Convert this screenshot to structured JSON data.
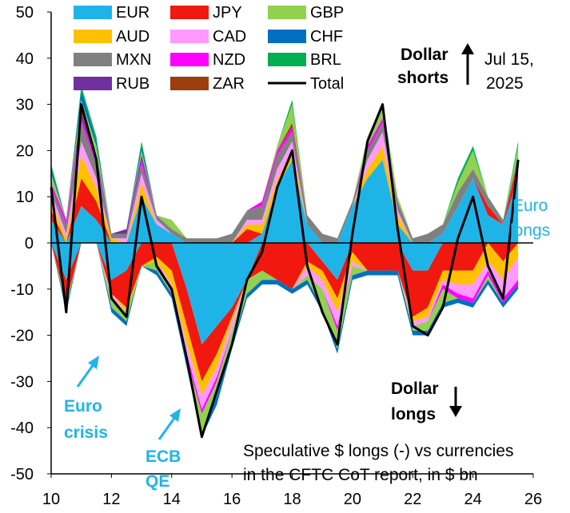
{
  "chart_data": {
    "type": "area",
    "subtype": "stacked",
    "xlim": [
      10,
      26
    ],
    "ylim": [
      -50,
      50
    ],
    "x_ticks": [
      10,
      12,
      14,
      16,
      18,
      20,
      22,
      24,
      26
    ],
    "x_tick_labels": [
      "10",
      "12",
      "14",
      "16",
      "18",
      "20",
      "22",
      "24",
      "26"
    ],
    "y_ticks": [
      -50,
      -40,
      -30,
      -20,
      -10,
      0,
      10,
      20,
      30,
      40,
      50
    ],
    "y_tick_labels": [
      "-50",
      "-40",
      "-30",
      "-20",
      "-10",
      "0",
      "10",
      "20",
      "30",
      "40",
      "50"
    ],
    "x": [
      10.0,
      10.5,
      11.0,
      11.5,
      12.0,
      12.5,
      13.0,
      13.5,
      14.0,
      14.5,
      15.0,
      15.5,
      16.0,
      16.5,
      17.0,
      17.5,
      18.0,
      18.5,
      19.0,
      19.5,
      20.0,
      20.5,
      21.0,
      21.5,
      22.0,
      22.5,
      23.0,
      23.5,
      24.0,
      24.5,
      25.0,
      25.5
    ],
    "series": [
      {
        "name": "EUR",
        "color": "#1FB4E8",
        "values": [
          5,
          -8,
          8,
          5,
          -8,
          -6,
          10,
          4,
          2,
          -10,
          -22,
          -18,
          -14,
          -8,
          2,
          12,
          18,
          4,
          -4,
          -8,
          8,
          14,
          18,
          4,
          -6,
          -6,
          2,
          8,
          14,
          6,
          4,
          14
        ]
      },
      {
        "name": "JPY",
        "color": "#F0180F",
        "values": [
          2,
          -5,
          6,
          4,
          -3,
          -8,
          -5,
          -3,
          -6,
          -8,
          -8,
          -6,
          -2,
          3,
          -6,
          -8,
          -10,
          -4,
          -2,
          -4,
          -2,
          -6,
          -6,
          -6,
          -10,
          -8,
          -6,
          -6,
          -6,
          2,
          -4,
          4
        ]
      },
      {
        "name": "AUD",
        "color": "#FFC000",
        "values": [
          2,
          1,
          5,
          3,
          1,
          -1,
          3,
          -1,
          -3,
          -4,
          -3,
          -3,
          -1,
          1,
          2,
          2,
          2,
          -1,
          -2,
          -3,
          -2,
          2,
          3,
          2,
          -1,
          -2,
          -2,
          -3,
          -3,
          -4,
          -4,
          -3
        ]
      },
      {
        "name": "CAD",
        "color": "#FF99FF",
        "values": [
          2,
          1,
          3,
          2,
          -1,
          1,
          2,
          1,
          -1,
          -2,
          -3,
          -2,
          -2,
          1,
          1,
          2,
          2,
          -2,
          -2,
          -3,
          -1,
          2,
          3,
          1,
          -1,
          -1,
          -1,
          -2,
          -3,
          -2,
          -4,
          -5
        ]
      },
      {
        "name": "MXN",
        "color": "#808080",
        "values": [
          1,
          2,
          4,
          3,
          1,
          1,
          2,
          1,
          1,
          1,
          1,
          1,
          2,
          2,
          3,
          3,
          2,
          2,
          2,
          1,
          1,
          2,
          2,
          2,
          1,
          2,
          2,
          3,
          2,
          2,
          1,
          1
        ]
      },
      {
        "name": "NZD",
        "color": "#FF00FF",
        "values": [
          1,
          1,
          1,
          1,
          0,
          0,
          1,
          0,
          -1,
          -1,
          -1,
          -1,
          0,
          0,
          1,
          1,
          1,
          0,
          0,
          -1,
          0,
          1,
          1,
          0,
          0,
          0,
          -1,
          -1,
          -1,
          -1,
          -1,
          -1
        ]
      },
      {
        "name": "RUB",
        "color": "#7030A0",
        "values": [
          0,
          0,
          1,
          1,
          0,
          1,
          1,
          0,
          0,
          0,
          0,
          0,
          0,
          0,
          0,
          0,
          0,
          0,
          0,
          0,
          0,
          0,
          0,
          0,
          0,
          0,
          0,
          0,
          0,
          0,
          0,
          0
        ]
      },
      {
        "name": "ZAR",
        "color": "#9C3E0F",
        "values": [
          0,
          0,
          1,
          0,
          0,
          0,
          0,
          0,
          0,
          0,
          0,
          0,
          0,
          0,
          0,
          0,
          1,
          0,
          0,
          0,
          0,
          0,
          0,
          0,
          0,
          0,
          0,
          0,
          0,
          0,
          0,
          0
        ]
      },
      {
        "name": "GBP",
        "color": "#92D050",
        "values": [
          2,
          -1,
          2,
          2,
          -2,
          -2,
          1,
          -2,
          2,
          -1,
          -4,
          -3,
          -3,
          -3,
          -2,
          1,
          4,
          -1,
          -4,
          -4,
          -2,
          2,
          2,
          1,
          -1,
          -2,
          -3,
          2,
          4,
          -1,
          0,
          2
        ]
      },
      {
        "name": "CHF",
        "color": "#0070C0",
        "values": [
          1,
          -1,
          2,
          1,
          -1,
          -1,
          1,
          -1,
          -1,
          -1,
          -1,
          -2,
          -1,
          -1,
          -1,
          -1,
          -1,
          -1,
          -1,
          -1,
          -1,
          -1,
          -1,
          -1,
          -1,
          -1,
          -1,
          -1,
          -1,
          -1,
          -1,
          -1
        ]
      },
      {
        "name": "BRL",
        "color": "#00B050",
        "values": [
          1,
          0,
          1,
          1,
          0,
          0,
          1,
          0,
          0,
          0,
          0,
          0,
          0,
          0,
          0,
          0,
          1,
          0,
          0,
          0,
          0,
          0,
          1,
          0,
          0,
          0,
          0,
          1,
          1,
          0,
          0,
          1
        ]
      }
    ],
    "total": {
      "name": "Total",
      "color": "#000000",
      "values": [
        12,
        -15,
        30,
        18,
        -12,
        -16,
        10,
        -5,
        -10,
        -25,
        -42,
        -32,
        -22,
        -8,
        -2,
        12,
        20,
        -5,
        -15,
        -22,
        2,
        22,
        30,
        3,
        -18,
        -20,
        -14,
        1,
        10,
        -5,
        -12,
        18
      ]
    },
    "legend_placement": "top",
    "grid": false
  },
  "annotations": {
    "dollar_shorts_line1": "Dollar",
    "dollar_shorts_line2": "shorts",
    "date_line1": "Jul 15,",
    "date_line2": "2025",
    "euro_longs_line1": "Euro",
    "euro_longs_line2": "longs",
    "dollar_longs_line1": "Dollar",
    "dollar_longs_line2": "longs",
    "euro_crisis_line1": "Euro",
    "euro_crisis_line2": "crisis",
    "ecb_qe_line1": "ECB",
    "ecb_qe_line2": "QE",
    "caption_line1": "Speculative $ longs (-) vs currencies",
    "caption_line2": "in the CFTC CoT report, in $ bn"
  },
  "colors": {
    "annotation_blue": "#1FB4E8",
    "axis": "#000000"
  }
}
